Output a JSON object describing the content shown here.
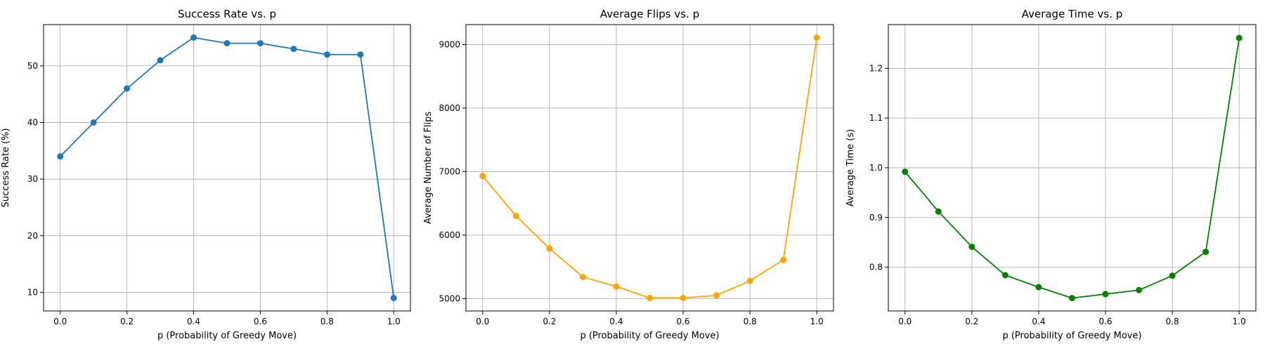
{
  "chart_data": [
    {
      "type": "line",
      "title": "Success Rate vs. p",
      "xlabel": "p (Probability of Greedy Move)",
      "ylabel": "Success Rate (%)",
      "x": [
        0.0,
        0.1,
        0.2,
        0.3,
        0.4,
        0.5,
        0.6,
        0.7,
        0.8,
        0.9,
        1.0
      ],
      "series": [
        {
          "values": [
            34,
            40,
            46,
            51,
            55,
            54,
            54,
            53,
            52,
            52,
            9
          ],
          "color": "#1f77b4"
        }
      ],
      "xlim": [
        -0.05,
        1.05
      ],
      "ylim": [
        6.7,
        57.3
      ],
      "xticks": [
        "0.0",
        "0.2",
        "0.4",
        "0.6",
        "0.8",
        "1.0"
      ],
      "yticks": [
        "10",
        "20",
        "30",
        "40",
        "50"
      ],
      "grid": true
    },
    {
      "type": "line",
      "title": "Average Flips vs. p",
      "xlabel": "p (Probability of Greedy Move)",
      "ylabel": "Average Number of Flips",
      "x": [
        0.0,
        0.1,
        0.2,
        0.3,
        0.4,
        0.5,
        0.6,
        0.7,
        0.8,
        0.9,
        1.0
      ],
      "series": [
        {
          "values": [
            6930,
            6300,
            5790,
            5340,
            5190,
            5010,
            5010,
            5050,
            5280,
            5610,
            9110
          ],
          "color": "#ffa500"
        }
      ],
      "xlim": [
        -0.05,
        1.05
      ],
      "ylim": [
        4805,
        9315
      ],
      "xticks": [
        "0.0",
        "0.2",
        "0.4",
        "0.6",
        "0.8",
        "1.0"
      ],
      "yticks": [
        "5000",
        "6000",
        "7000",
        "8000",
        "9000"
      ],
      "grid": true
    },
    {
      "type": "line",
      "title": "Average Time vs. p",
      "xlabel": "p (Probability of Greedy Move)",
      "ylabel": "Average Time (s)",
      "x": [
        0.0,
        0.1,
        0.2,
        0.3,
        0.4,
        0.5,
        0.6,
        0.7,
        0.8,
        0.9,
        1.0
      ],
      "series": [
        {
          "values": [
            0.992,
            0.912,
            0.841,
            0.784,
            0.76,
            0.738,
            0.746,
            0.754,
            0.783,
            0.831,
            1.261
          ],
          "color": "#008000"
        }
      ],
      "xlim": [
        -0.05,
        1.05
      ],
      "ylim": [
        0.712,
        1.288
      ],
      "xticks": [
        "0.0",
        "0.2",
        "0.4",
        "0.6",
        "0.8",
        "1.0"
      ],
      "yticks": [
        "0.8",
        "0.9",
        "1.0",
        "1.1",
        "1.2"
      ],
      "grid": true
    }
  ]
}
